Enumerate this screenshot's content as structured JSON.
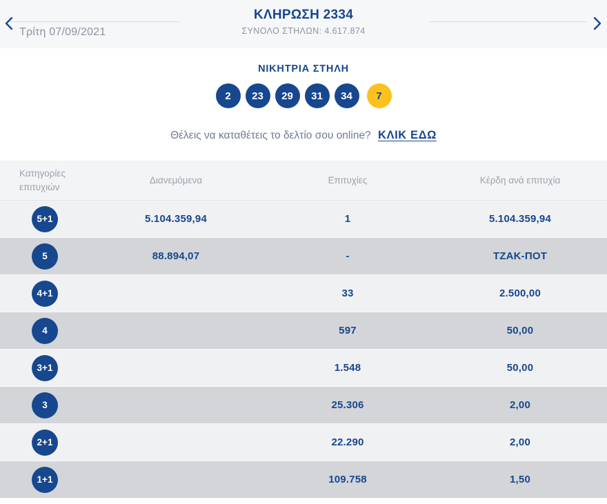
{
  "colors": {
    "accent": "#17478e",
    "joker_yellow": "#fcc11d",
    "nav_background": "#f6f7f9",
    "light_row": "#f0f1f3",
    "dark_row": "#d3d5d8"
  },
  "nav": {
    "title": "ΚΛΗΡΩΣΗ 2334",
    "total_columns": "ΣΥΝΟΛΟ ΣΤΗΛΩΝ: 4.617.874",
    "date": "Τρίτη 07/09/2021",
    "prev_arrow": "previous draw",
    "next_arrow": "next draw"
  },
  "winning": {
    "heading": "ΝΙΚΗΤΡΙΑ ΣΤΗΛΗ",
    "numbers": [
      "2",
      "23",
      "29",
      "31",
      "34"
    ],
    "joker": "7"
  },
  "promo": {
    "text": "Θέλεις να καταθέτεις το δελτίο σου online?",
    "link_label": "ΚΛΙΚ ΕΔΩ"
  },
  "table": {
    "headers": [
      "Κατηγορίες επιτυχιών",
      "Διανεμόμενα",
      "Επιτυχίες",
      "Κέρδη ανά επιτυχία"
    ],
    "rows": [
      {
        "category": "5+1",
        "distributed": "5.104.359,94",
        "winners": "1",
        "prize": "5.104.359,94"
      },
      {
        "category": "5",
        "distributed": "88.894,07",
        "winners": "-",
        "prize": "ΤΖΑΚ-ΠΟΤ"
      },
      {
        "category": "4+1",
        "distributed": "",
        "winners": "33",
        "prize": "2.500,00"
      },
      {
        "category": "4",
        "distributed": "",
        "winners": "597",
        "prize": "50,00"
      },
      {
        "category": "3+1",
        "distributed": "",
        "winners": "1.548",
        "prize": "50,00"
      },
      {
        "category": "3",
        "distributed": "",
        "winners": "25.306",
        "prize": "2,00"
      },
      {
        "category": "2+1",
        "distributed": "",
        "winners": "22.290",
        "prize": "2,00"
      },
      {
        "category": "1+1",
        "distributed": "",
        "winners": "109.758",
        "prize": "1,50"
      }
    ]
  }
}
